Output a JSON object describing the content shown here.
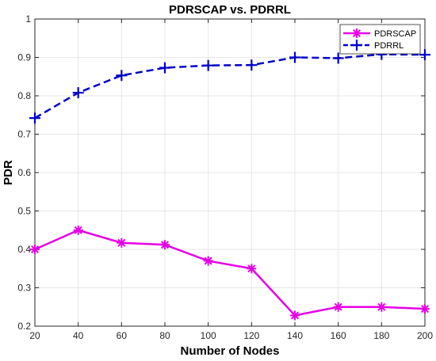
{
  "chart_data": {
    "type": "line",
    "title": "PDRSCAP vs. PDRRL",
    "xlabel": "Number of Nodes",
    "ylabel": "PDR",
    "x": [
      20,
      40,
      60,
      80,
      100,
      120,
      140,
      160,
      180,
      200
    ],
    "xlim": [
      20,
      200
    ],
    "ylim": [
      0.2,
      1
    ],
    "xticks": [
      "20",
      "40",
      "60",
      "80",
      "100",
      "120",
      "140",
      "160",
      "180",
      "200"
    ],
    "yticks": [
      "0.2",
      "0.3",
      "0.4",
      "0.5",
      "0.6",
      "0.7",
      "0.8",
      "0.9",
      "1"
    ],
    "grid": true,
    "legend_position": "top-right",
    "series": [
      {
        "name": "PDRSCAP",
        "color": "#e600e6",
        "line_style": "solid",
        "marker": "asterisk",
        "values": [
          0.4,
          0.45,
          0.417,
          0.412,
          0.37,
          0.35,
          0.228,
          0.25,
          0.25,
          0.245
        ]
      },
      {
        "name": "PDRRL",
        "color": "#0000cc",
        "line_style": "dashed",
        "marker": "plus",
        "values": [
          0.742,
          0.808,
          0.853,
          0.873,
          0.879,
          0.88,
          0.9,
          0.898,
          0.908,
          0.907
        ]
      }
    ]
  }
}
